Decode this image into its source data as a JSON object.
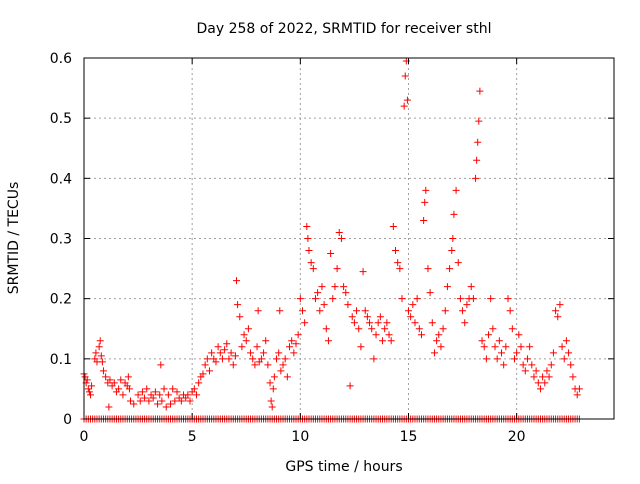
{
  "chart_data": {
    "type": "scatter",
    "title": "Day 258 of 2022, SRMTID for receiver sthl",
    "xlabel": "GPS time / hours",
    "ylabel": "SRMTID / TECUs",
    "xlim": [
      0,
      24.5
    ],
    "ylim": [
      0,
      0.6
    ],
    "x_ticks": [
      0,
      5,
      10,
      15,
      20
    ],
    "x_tick_labels": [
      "0",
      "5",
      "10",
      "15",
      "20"
    ],
    "y_ticks": [
      0,
      0.1,
      0.2,
      0.3,
      0.4,
      0.5,
      0.6
    ],
    "y_tick_labels": [
      "0",
      "0.1",
      "0.2",
      "0.3",
      "0.4",
      "0.5",
      "0.6"
    ],
    "grid": true,
    "marker": "plus",
    "color": "#ff0000",
    "series": [
      {
        "name": "SRMTID",
        "points": [
          [
            0.0,
            0.075
          ],
          [
            0.05,
            0.07
          ],
          [
            0.1,
            0.06
          ],
          [
            0.15,
            0.065
          ],
          [
            0.2,
            0.05
          ],
          [
            0.25,
            0.045
          ],
          [
            0.3,
            0.04
          ],
          [
            0.35,
            0.055
          ],
          [
            0.5,
            0.1
          ],
          [
            0.55,
            0.11
          ],
          [
            0.6,
            0.095
          ],
          [
            0.7,
            0.12
          ],
          [
            0.75,
            0.13
          ],
          [
            0.8,
            0.105
          ],
          [
            0.85,
            0.095
          ],
          [
            0.9,
            0.08
          ],
          [
            1.0,
            0.07
          ],
          [
            1.1,
            0.06
          ],
          [
            1.15,
            0.02
          ],
          [
            1.2,
            0.065
          ],
          [
            1.3,
            0.055
          ],
          [
            1.4,
            0.06
          ],
          [
            1.5,
            0.045
          ],
          [
            1.6,
            0.05
          ],
          [
            1.7,
            0.065
          ],
          [
            1.8,
            0.04
          ],
          [
            1.9,
            0.06
          ],
          [
            2.0,
            0.055
          ],
          [
            2.05,
            0.07
          ],
          [
            2.1,
            0.05
          ],
          [
            2.15,
            0.03
          ],
          [
            2.3,
            0.025
          ],
          [
            2.5,
            0.04
          ],
          [
            2.6,
            0.03
          ],
          [
            2.7,
            0.045
          ],
          [
            2.8,
            0.035
          ],
          [
            2.9,
            0.05
          ],
          [
            3.0,
            0.03
          ],
          [
            3.1,
            0.04
          ],
          [
            3.2,
            0.035
          ],
          [
            3.3,
            0.045
          ],
          [
            3.4,
            0.025
          ],
          [
            3.5,
            0.04
          ],
          [
            3.55,
            0.09
          ],
          [
            3.6,
            0.03
          ],
          [
            3.7,
            0.05
          ],
          [
            3.8,
            0.02
          ],
          [
            3.9,
            0.04
          ],
          [
            4.0,
            0.025
          ],
          [
            4.1,
            0.05
          ],
          [
            4.2,
            0.03
          ],
          [
            4.3,
            0.045
          ],
          [
            4.4,
            0.035
          ],
          [
            4.5,
            0.03
          ],
          [
            4.6,
            0.04
          ],
          [
            4.7,
            0.035
          ],
          [
            4.8,
            0.04
          ],
          [
            4.9,
            0.03
          ],
          [
            5.0,
            0.045
          ],
          [
            5.1,
            0.05
          ],
          [
            5.2,
            0.04
          ],
          [
            5.3,
            0.06
          ],
          [
            5.4,
            0.07
          ],
          [
            5.5,
            0.075
          ],
          [
            5.6,
            0.09
          ],
          [
            5.7,
            0.1
          ],
          [
            5.8,
            0.08
          ],
          [
            5.9,
            0.11
          ],
          [
            6.0,
            0.1
          ],
          [
            6.1,
            0.095
          ],
          [
            6.2,
            0.12
          ],
          [
            6.3,
            0.11
          ],
          [
            6.4,
            0.1
          ],
          [
            6.5,
            0.115
          ],
          [
            6.6,
            0.125
          ],
          [
            6.7,
            0.1
          ],
          [
            6.8,
            0.11
          ],
          [
            6.9,
            0.09
          ],
          [
            7.0,
            0.105
          ],
          [
            7.05,
            0.23
          ],
          [
            7.1,
            0.19
          ],
          [
            7.2,
            0.17
          ],
          [
            7.3,
            0.12
          ],
          [
            7.4,
            0.14
          ],
          [
            7.5,
            0.13
          ],
          [
            7.6,
            0.15
          ],
          [
            7.7,
            0.11
          ],
          [
            7.8,
            0.1
          ],
          [
            7.9,
            0.09
          ],
          [
            8.0,
            0.12
          ],
          [
            8.05,
            0.18
          ],
          [
            8.1,
            0.095
          ],
          [
            8.2,
            0.1
          ],
          [
            8.3,
            0.11
          ],
          [
            8.4,
            0.13
          ],
          [
            8.5,
            0.09
          ],
          [
            8.6,
            0.06
          ],
          [
            8.65,
            0.03
          ],
          [
            8.7,
            0.02
          ],
          [
            8.75,
            0.05
          ],
          [
            8.8,
            0.07
          ],
          [
            8.9,
            0.1
          ],
          [
            9.0,
            0.11
          ],
          [
            9.05,
            0.18
          ],
          [
            9.1,
            0.08
          ],
          [
            9.2,
            0.09
          ],
          [
            9.3,
            0.1
          ],
          [
            9.4,
            0.07
          ],
          [
            9.5,
            0.12
          ],
          [
            9.6,
            0.13
          ],
          [
            9.7,
            0.11
          ],
          [
            9.8,
            0.125
          ],
          [
            9.9,
            0.14
          ],
          [
            10.0,
            0.2
          ],
          [
            10.1,
            0.18
          ],
          [
            10.2,
            0.16
          ],
          [
            10.3,
            0.32
          ],
          [
            10.35,
            0.3
          ],
          [
            10.4,
            0.28
          ],
          [
            10.5,
            0.26
          ],
          [
            10.6,
            0.25
          ],
          [
            10.7,
            0.2
          ],
          [
            10.8,
            0.21
          ],
          [
            10.9,
            0.18
          ],
          [
            11.0,
            0.22
          ],
          [
            11.1,
            0.19
          ],
          [
            11.2,
            0.15
          ],
          [
            11.3,
            0.13
          ],
          [
            11.4,
            0.275
          ],
          [
            11.5,
            0.2
          ],
          [
            11.6,
            0.22
          ],
          [
            11.7,
            0.25
          ],
          [
            11.8,
            0.31
          ],
          [
            11.9,
            0.3
          ],
          [
            12.0,
            0.22
          ],
          [
            12.1,
            0.21
          ],
          [
            12.2,
            0.19
          ],
          [
            12.3,
            0.055
          ],
          [
            12.4,
            0.17
          ],
          [
            12.5,
            0.16
          ],
          [
            12.6,
            0.18
          ],
          [
            12.7,
            0.15
          ],
          [
            12.8,
            0.12
          ],
          [
            12.9,
            0.245
          ],
          [
            13.0,
            0.18
          ],
          [
            13.1,
            0.17
          ],
          [
            13.2,
            0.16
          ],
          [
            13.3,
            0.15
          ],
          [
            13.4,
            0.1
          ],
          [
            13.5,
            0.14
          ],
          [
            13.6,
            0.16
          ],
          [
            13.7,
            0.17
          ],
          [
            13.8,
            0.13
          ],
          [
            13.9,
            0.15
          ],
          [
            14.0,
            0.16
          ],
          [
            14.1,
            0.14
          ],
          [
            14.2,
            0.13
          ],
          [
            14.3,
            0.32
          ],
          [
            14.4,
            0.28
          ],
          [
            14.5,
            0.26
          ],
          [
            14.6,
            0.25
          ],
          [
            14.7,
            0.2
          ],
          [
            14.8,
            0.52
          ],
          [
            14.85,
            0.57
          ],
          [
            14.9,
            0.595
          ],
          [
            14.95,
            0.53
          ],
          [
            15.0,
            0.18
          ],
          [
            15.1,
            0.17
          ],
          [
            15.2,
            0.19
          ],
          [
            15.3,
            0.16
          ],
          [
            15.4,
            0.2
          ],
          [
            15.5,
            0.15
          ],
          [
            15.6,
            0.14
          ],
          [
            15.7,
            0.33
          ],
          [
            15.75,
            0.36
          ],
          [
            15.8,
            0.38
          ],
          [
            15.9,
            0.25
          ],
          [
            16.0,
            0.21
          ],
          [
            16.1,
            0.16
          ],
          [
            16.2,
            0.11
          ],
          [
            16.3,
            0.13
          ],
          [
            16.4,
            0.14
          ],
          [
            16.5,
            0.12
          ],
          [
            16.6,
            0.15
          ],
          [
            16.7,
            0.18
          ],
          [
            16.8,
            0.22
          ],
          [
            16.9,
            0.25
          ],
          [
            17.0,
            0.28
          ],
          [
            17.05,
            0.3
          ],
          [
            17.1,
            0.34
          ],
          [
            17.2,
            0.38
          ],
          [
            17.3,
            0.26
          ],
          [
            17.4,
            0.2
          ],
          [
            17.5,
            0.18
          ],
          [
            17.6,
            0.16
          ],
          [
            17.7,
            0.19
          ],
          [
            17.8,
            0.2
          ],
          [
            17.9,
            0.22
          ],
          [
            18.0,
            0.2
          ],
          [
            18.1,
            0.4
          ],
          [
            18.15,
            0.43
          ],
          [
            18.2,
            0.46
          ],
          [
            18.25,
            0.495
          ],
          [
            18.3,
            0.545
          ],
          [
            18.4,
            0.13
          ],
          [
            18.5,
            0.12
          ],
          [
            18.6,
            0.1
          ],
          [
            18.7,
            0.14
          ],
          [
            18.8,
            0.2
          ],
          [
            18.9,
            0.15
          ],
          [
            19.0,
            0.12
          ],
          [
            19.1,
            0.1
          ],
          [
            19.2,
            0.13
          ],
          [
            19.3,
            0.11
          ],
          [
            19.4,
            0.09
          ],
          [
            19.5,
            0.12
          ],
          [
            19.6,
            0.2
          ],
          [
            19.7,
            0.18
          ],
          [
            19.8,
            0.15
          ],
          [
            19.9,
            0.1
          ],
          [
            20.0,
            0.11
          ],
          [
            20.1,
            0.14
          ],
          [
            20.2,
            0.12
          ],
          [
            20.3,
            0.09
          ],
          [
            20.4,
            0.08
          ],
          [
            20.5,
            0.1
          ],
          [
            20.6,
            0.12
          ],
          [
            20.7,
            0.09
          ],
          [
            20.8,
            0.07
          ],
          [
            20.9,
            0.08
          ],
          [
            21.0,
            0.06
          ],
          [
            21.1,
            0.05
          ],
          [
            21.2,
            0.07
          ],
          [
            21.3,
            0.06
          ],
          [
            21.4,
            0.08
          ],
          [
            21.5,
            0.07
          ],
          [
            21.6,
            0.09
          ],
          [
            21.7,
            0.11
          ],
          [
            21.8,
            0.18
          ],
          [
            21.9,
            0.17
          ],
          [
            22.0,
            0.19
          ],
          [
            22.1,
            0.12
          ],
          [
            22.2,
            0.1
          ],
          [
            22.3,
            0.13
          ],
          [
            22.4,
            0.11
          ],
          [
            22.5,
            0.09
          ],
          [
            22.6,
            0.07
          ],
          [
            22.7,
            0.05
          ],
          [
            22.8,
            0.04
          ],
          [
            22.9,
            0.05
          ]
        ]
      },
      {
        "name": "zero-values",
        "x_start": 0.0,
        "x_end": 22.9,
        "x_step": 0.1,
        "y": 0
      }
    ]
  }
}
